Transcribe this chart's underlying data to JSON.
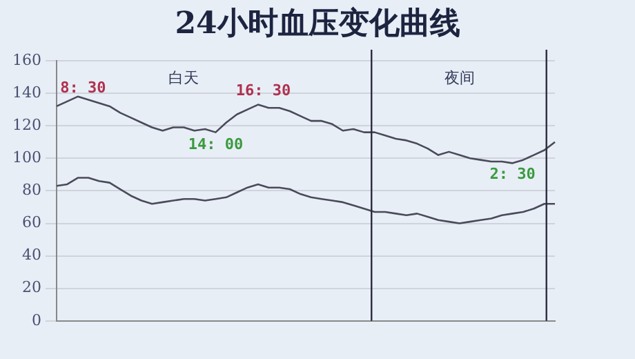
{
  "chart_data": {
    "type": "line",
    "title": "24小时血压变化曲线",
    "categories": [
      null,
      null,
      null,
      null,
      null,
      null,
      null,
      null,
      null,
      null,
      null,
      null,
      null,
      null,
      null,
      null,
      null,
      null,
      null,
      null,
      null,
      null,
      null,
      null,
      null,
      null,
      null,
      null,
      null,
      null,
      null,
      null,
      null,
      null,
      null,
      null,
      null,
      null,
      null,
      null,
      null,
      null,
      null,
      null,
      null,
      null,
      null,
      null
    ],
    "series": [
      {
        "color": "#4a4a5a",
        "values": [
          132,
          135,
          138,
          136,
          134,
          132,
          128,
          125,
          122,
          119,
          117,
          119,
          119,
          117,
          118,
          116,
          122,
          127,
          130,
          133,
          131,
          131,
          129,
          126,
          123,
          123,
          121,
          117,
          118,
          116,
          116,
          114,
          112,
          111,
          109,
          106,
          102,
          104,
          102,
          100,
          99,
          98,
          98,
          97,
          99,
          102,
          105,
          110
        ]
      },
      {
        "color": "#4a4a5a",
        "values": [
          83,
          84,
          88,
          88,
          86,
          85,
          81,
          77,
          74,
          72,
          73,
          74,
          75,
          75,
          74,
          75,
          76,
          79,
          82,
          84,
          82,
          82,
          81,
          78,
          76,
          75,
          74,
          73,
          71,
          69,
          67,
          67,
          66,
          65,
          66,
          64,
          62,
          61,
          60,
          61,
          62,
          63,
          65,
          66,
          67,
          69,
          72,
          72
        ]
      }
    ],
    "ylim": [
      0,
      160
    ],
    "yticks": [
      0,
      20,
      40,
      60,
      80,
      100,
      120,
      140,
      160
    ],
    "grid": "y",
    "marker": "none",
    "line_style": "solid",
    "legend": false,
    "annotations": [
      "8: 30",
      "16: 30",
      "14: 00",
      "2: 30",
      "白天",
      "夜间"
    ]
  }
}
